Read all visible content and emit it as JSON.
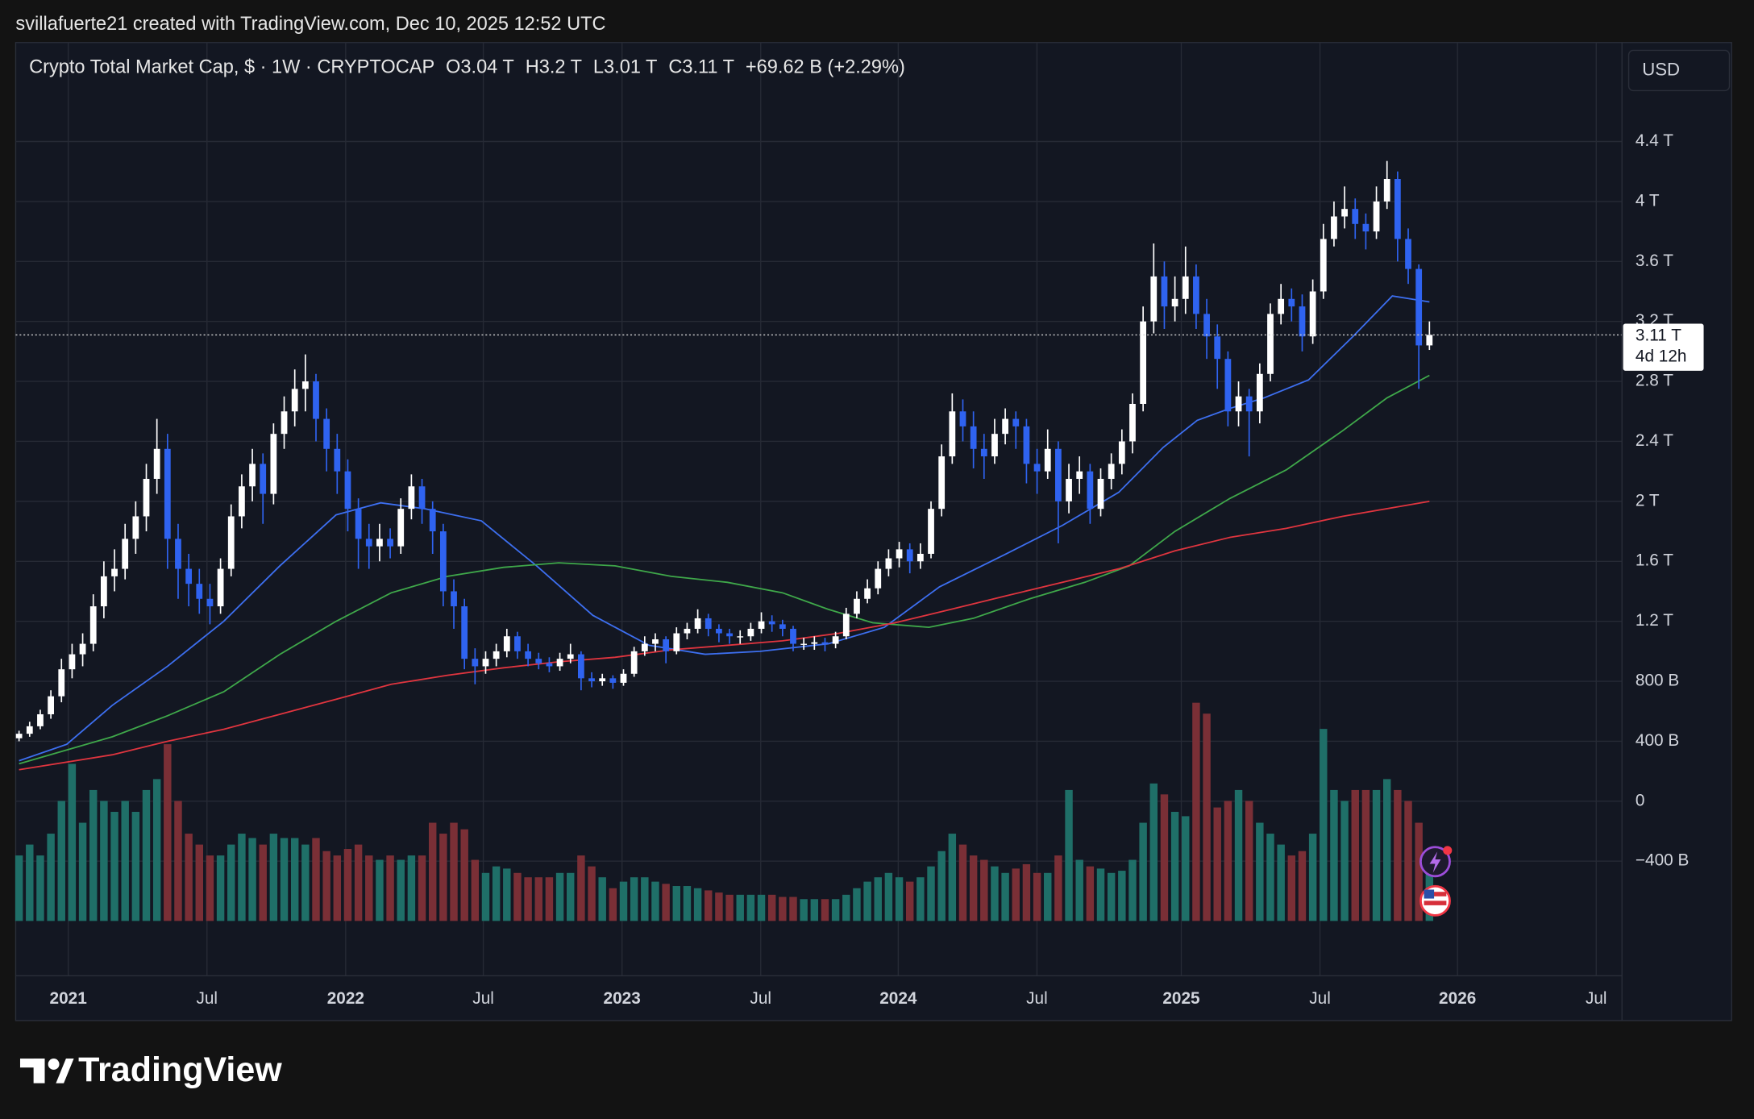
{
  "attribution": "svillafuerte21 created with TradingView.com, Dec 10, 2025 12:52 UTC",
  "brand": "TradingView",
  "chart_data": {
    "type": "candlestick",
    "legend": {
      "symbol": "Crypto Total Market Cap, $ · 1W · CRYPTOCAP",
      "open_label": "O",
      "open": "3.04 T",
      "high_label": "H",
      "high": "3.2 T",
      "low_label": "L",
      "low": "3.01 T",
      "close_label": "C",
      "close": "3.11 T",
      "change": "+69.62 B (+2.29%)"
    },
    "currency_button": "USD",
    "price_label": "3.11 T",
    "countdown": "4d 12h",
    "grid": true,
    "up_color": "#ffffff",
    "down_color": "#2f63f0",
    "volume_up_color": "#1f6f68",
    "volume_down_color": "#7a2f36",
    "xlim": [
      -0.32,
      151.16
    ],
    "xticks": [
      {
        "value": 4.64,
        "label": "2021"
      },
      {
        "value": 17.72,
        "label": "Jul"
      },
      {
        "value": 30.8,
        "label": "2022"
      },
      {
        "value": 43.78,
        "label": "Jul"
      },
      {
        "value": 56.86,
        "label": "2023"
      },
      {
        "value": 69.94,
        "label": "Jul"
      },
      {
        "value": 82.91,
        "label": "2024"
      },
      {
        "value": 95.99,
        "label": "Jul"
      },
      {
        "value": 109.6,
        "label": "2025"
      },
      {
        "value": 122.68,
        "label": "Jul"
      },
      {
        "value": 135.65,
        "label": "2026"
      },
      {
        "value": 148.73,
        "label": "Jul"
      }
    ],
    "ylim": [
      -1.164,
      5.06
    ],
    "yticks": [
      {
        "value": 4.4,
        "label": "4.4 T"
      },
      {
        "value": 4,
        "label": "4 T"
      },
      {
        "value": 3.6,
        "label": "3.6 T"
      },
      {
        "value": 3.2,
        "label": "3.2 T"
      },
      {
        "value": 2.8,
        "label": "2.8 T"
      },
      {
        "value": 2.4,
        "label": "2.4 T"
      },
      {
        "value": 2,
        "label": "2 T"
      },
      {
        "value": 1.6,
        "label": "1.6 T"
      },
      {
        "value": 1.2,
        "label": "1.2 T"
      },
      {
        "value": 0.8,
        "label": "800 B"
      },
      {
        "value": 0.4,
        "label": "400 B"
      },
      0,
      {
        "value": -0.4,
        "label": "−400 B"
      }
    ],
    "open": [
      0.42,
      0.45,
      0.5,
      0.58,
      0.7,
      0.88,
      0.98,
      1.05,
      1.3,
      1.5,
      1.55,
      1.75,
      1.9,
      2.15,
      2.35,
      1.75,
      1.55,
      1.45,
      1.35,
      1.3,
      1.55,
      1.9,
      2.1,
      2.25,
      2.05,
      2.45,
      2.6,
      2.75,
      2.8,
      2.55,
      2.35,
      2.2,
      1.95,
      1.75,
      1.7,
      1.75,
      1.7,
      1.95,
      2.1,
      1.95,
      1.8,
      1.4,
      1.3,
      0.95,
      0.9,
      0.95,
      1.0,
      1.1,
      1.0,
      0.95,
      0.92,
      0.9,
      0.95,
      0.98,
      0.82,
      0.8,
      0.82,
      0.79,
      0.85,
      1.0,
      1.05,
      1.08,
      1.0,
      1.12,
      1.15,
      1.22,
      1.15,
      1.12,
      1.1,
      1.1,
      1.15,
      1.2,
      1.18,
      1.15,
      1.05,
      1.05,
      1.06,
      1.05,
      1.1,
      1.25,
      1.35,
      1.42,
      1.55,
      1.62,
      1.68,
      1.6,
      1.65,
      1.95,
      2.3,
      2.6,
      2.5,
      2.35,
      2.3,
      2.45,
      2.55,
      2.5,
      2.25,
      2.2,
      2.35,
      2.0,
      2.15,
      2.2,
      1.95,
      2.15,
      2.25,
      2.4,
      2.65,
      3.2,
      3.5,
      3.3,
      3.35,
      3.5,
      3.25,
      3.1,
      2.95,
      2.6,
      2.7,
      2.6,
      2.85,
      3.25,
      3.35,
      3.3,
      3.1,
      3.4,
      3.75,
      3.9,
      3.95,
      3.85,
      3.8,
      4.0,
      4.15,
      3.75,
      3.55,
      3.04
    ],
    "high": [
      0.47,
      0.53,
      0.61,
      0.74,
      0.95,
      1.05,
      1.12,
      1.38,
      1.6,
      1.68,
      1.85,
      2.0,
      2.25,
      2.55,
      2.45,
      1.85,
      1.65,
      1.55,
      1.45,
      1.62,
      1.98,
      2.18,
      2.35,
      2.32,
      2.52,
      2.7,
      2.88,
      2.98,
      2.85,
      2.62,
      2.45,
      2.28,
      2.02,
      1.85,
      1.85,
      1.82,
      2.02,
      2.18,
      2.15,
      2.0,
      1.85,
      1.48,
      1.35,
      1.02,
      1.0,
      1.05,
      1.15,
      1.13,
      1.05,
      0.99,
      0.96,
      0.99,
      1.05,
      1.0,
      0.86,
      0.85,
      0.84,
      0.88,
      1.03,
      1.1,
      1.12,
      1.1,
      1.16,
      1.19,
      1.28,
      1.25,
      1.18,
      1.15,
      1.14,
      1.19,
      1.26,
      1.24,
      1.21,
      1.17,
      1.09,
      1.1,
      1.09,
      1.13,
      1.29,
      1.4,
      1.48,
      1.6,
      1.68,
      1.73,
      1.72,
      1.72,
      2.0,
      2.38,
      2.72,
      2.68,
      2.6,
      2.45,
      2.55,
      2.62,
      2.6,
      2.55,
      2.35,
      2.48,
      2.4,
      2.25,
      2.3,
      2.25,
      2.22,
      2.32,
      2.48,
      2.72,
      3.3,
      3.72,
      3.6,
      3.5,
      3.7,
      3.58,
      3.35,
      3.18,
      3.0,
      2.8,
      2.75,
      2.92,
      3.32,
      3.45,
      3.42,
      3.38,
      3.48,
      3.85,
      4.0,
      4.1,
      4.02,
      3.92,
      4.1,
      4.27,
      4.2,
      3.82,
      3.58,
      3.2
    ],
    "low": [
      0.4,
      0.43,
      0.48,
      0.55,
      0.66,
      0.82,
      0.9,
      1.0,
      1.22,
      1.4,
      1.48,
      1.65,
      1.8,
      2.05,
      1.55,
      1.35,
      1.3,
      1.25,
      1.18,
      1.25,
      1.5,
      1.82,
      2.0,
      1.85,
      1.98,
      2.35,
      2.5,
      2.6,
      2.4,
      2.2,
      2.05,
      1.8,
      1.55,
      1.55,
      1.6,
      1.62,
      1.65,
      1.88,
      1.85,
      1.65,
      1.3,
      1.15,
      0.88,
      0.78,
      0.85,
      0.9,
      0.96,
      0.95,
      0.9,
      0.88,
      0.86,
      0.87,
      0.92,
      0.74,
      0.76,
      0.77,
      0.75,
      0.77,
      0.83,
      0.97,
      1.0,
      0.92,
      0.98,
      1.08,
      1.12,
      1.1,
      1.06,
      1.05,
      1.05,
      1.07,
      1.12,
      1.13,
      1.1,
      1.0,
      1.01,
      1.01,
      1.0,
      1.02,
      1.08,
      1.22,
      1.32,
      1.38,
      1.5,
      1.56,
      1.52,
      1.55,
      1.62,
      1.9,
      2.25,
      2.4,
      2.22,
      2.15,
      2.25,
      2.38,
      2.35,
      2.12,
      2.05,
      2.15,
      1.72,
      1.92,
      2.05,
      1.85,
      1.9,
      2.08,
      2.18,
      2.32,
      2.6,
      3.12,
      3.15,
      3.2,
      3.25,
      3.15,
      2.95,
      2.75,
      2.5,
      2.5,
      2.3,
      2.52,
      2.8,
      3.18,
      3.2,
      3.0,
      3.05,
      3.35,
      3.7,
      3.82,
      3.75,
      3.68,
      3.75,
      3.95,
      3.6,
      3.45,
      2.75,
      3.01
    ],
    "close": [
      0.45,
      0.5,
      0.58,
      0.7,
      0.88,
      0.98,
      1.05,
      1.3,
      1.5,
      1.55,
      1.75,
      1.9,
      2.15,
      2.35,
      1.75,
      1.55,
      1.45,
      1.35,
      1.3,
      1.55,
      1.9,
      2.1,
      2.25,
      2.05,
      2.45,
      2.6,
      2.75,
      2.8,
      2.55,
      2.35,
      2.2,
      1.95,
      1.75,
      1.7,
      1.75,
      1.7,
      1.95,
      2.1,
      1.95,
      1.8,
      1.4,
      1.3,
      0.95,
      0.9,
      0.95,
      1.0,
      1.1,
      1.0,
      0.95,
      0.92,
      0.9,
      0.95,
      0.98,
      0.82,
      0.8,
      0.82,
      0.79,
      0.85,
      1.0,
      1.05,
      1.08,
      1.0,
      1.12,
      1.15,
      1.22,
      1.15,
      1.12,
      1.1,
      1.1,
      1.15,
      1.2,
      1.18,
      1.15,
      1.05,
      1.05,
      1.06,
      1.05,
      1.1,
      1.25,
      1.35,
      1.42,
      1.55,
      1.62,
      1.68,
      1.6,
      1.65,
      1.95,
      2.3,
      2.6,
      2.5,
      2.35,
      2.3,
      2.45,
      2.55,
      2.5,
      2.25,
      2.2,
      2.35,
      2.0,
      2.15,
      2.2,
      1.95,
      2.15,
      2.25,
      2.4,
      2.65,
      3.2,
      3.5,
      3.3,
      3.35,
      3.5,
      3.25,
      3.1,
      2.95,
      2.6,
      2.7,
      2.6,
      2.85,
      3.25,
      3.35,
      3.3,
      3.1,
      3.4,
      3.75,
      3.9,
      3.95,
      3.85,
      3.8,
      4.0,
      4.15,
      3.75,
      3.55,
      3.04,
      3.11
    ],
    "volume": {
      "ylim": [
        0,
        100
      ],
      "values": [
        30,
        35,
        30,
        40,
        55,
        72,
        45,
        60,
        55,
        50,
        55,
        50,
        60,
        65,
        81,
        55,
        40,
        35,
        30,
        30,
        35,
        40,
        38,
        35,
        40,
        38,
        38,
        35,
        38,
        32,
        30,
        33,
        35,
        30,
        28,
        30,
        28,
        30,
        30,
        45,
        40,
        45,
        42,
        28,
        22,
        25,
        24,
        22,
        20,
        20,
        20,
        22,
        22,
        30,
        25,
        20,
        15,
        18,
        20,
        20,
        18,
        17,
        16,
        16,
        15,
        14,
        13,
        12,
        12,
        12,
        12,
        12,
        11,
        11,
        10,
        10,
        10,
        10,
        12,
        15,
        18,
        20,
        22,
        20,
        18,
        20,
        25,
        32,
        40,
        35,
        30,
        28,
        25,
        22,
        24,
        26,
        22,
        22,
        30,
        60,
        28,
        25,
        24,
        22,
        23,
        28,
        45,
        63,
        58,
        50,
        48,
        100,
        95,
        52,
        55,
        60,
        55,
        45,
        40,
        35,
        30,
        32,
        40,
        88,
        60,
        55,
        60,
        60,
        60,
        65,
        60,
        55,
        45,
        30
      ]
    },
    "lines": [
      {
        "color": "#3d6ff0",
        "x": [
          0,
          4.5,
          8.8,
          14.0,
          19.3,
          24.6,
          29.9,
          34.1,
          38.3,
          43.6,
          48.8,
          54.1,
          59.4,
          64.7,
          69.9,
          76.3,
          81.6,
          86.8,
          93.1,
          98.4,
          103.7,
          107.9,
          111.1,
          114.2,
          117.4,
          121.6,
          125.8,
          129.5,
          133
        ],
        "values": [
          0.27,
          0.38,
          0.64,
          0.9,
          1.2,
          1.57,
          1.91,
          1.99,
          1.95,
          1.87,
          1.57,
          1.24,
          1.04,
          0.98,
          1.0,
          1.05,
          1.16,
          1.43,
          1.65,
          1.84,
          2.06,
          2.36,
          2.54,
          2.62,
          2.69,
          2.81,
          3.1,
          3.37,
          3.33
        ]
      },
      {
        "color": "#3fa84a",
        "x": [
          0,
          8.8,
          14.0,
          19.3,
          24.6,
          29.9,
          35.1,
          40.4,
          45.7,
          50.9,
          56.2,
          61.5,
          66.8,
          72.0,
          76.3,
          80.5,
          85.8,
          90.0,
          95.3,
          100.5,
          104.7,
          109.0,
          114.2,
          119.5,
          124.8,
          129.0,
          133
        ],
        "values": [
          0.25,
          0.43,
          0.57,
          0.73,
          0.98,
          1.2,
          1.39,
          1.5,
          1.56,
          1.59,
          1.57,
          1.5,
          1.46,
          1.39,
          1.28,
          1.19,
          1.16,
          1.22,
          1.35,
          1.46,
          1.57,
          1.8,
          2.02,
          2.21,
          2.47,
          2.69,
          2.84
        ]
      },
      {
        "color": "#e0353f",
        "x": [
          0,
          8.8,
          14.0,
          19.3,
          24.6,
          29.9,
          35.1,
          40.4,
          45.7,
          50.9,
          56.2,
          61.5,
          66.8,
          72.0,
          77.3,
          82.6,
          87.9,
          93.1,
          98.4,
          103.7,
          109.0,
          114.2,
          119.5,
          124.8,
          133
        ],
        "values": [
          0.21,
          0.31,
          0.4,
          0.48,
          0.58,
          0.68,
          0.78,
          0.84,
          0.89,
          0.93,
          0.96,
          1.01,
          1.04,
          1.07,
          1.12,
          1.19,
          1.28,
          1.37,
          1.46,
          1.55,
          1.67,
          1.76,
          1.82,
          1.9,
          2.0
        ]
      }
    ]
  }
}
